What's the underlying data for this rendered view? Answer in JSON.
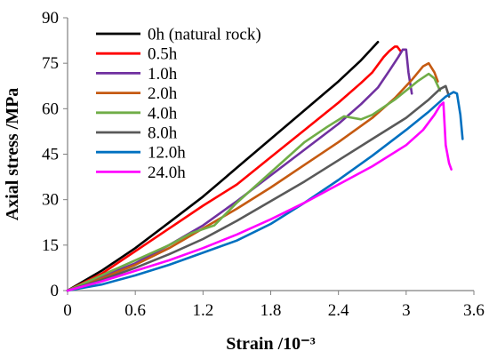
{
  "chart_data": {
    "type": "line",
    "xlabel": "Strain /10⁻³",
    "ylabel": "Axial stress /MPa",
    "xlim": [
      0,
      3.6
    ],
    "ylim": [
      0,
      90
    ],
    "x_ticks": [
      0,
      0.6,
      1.2,
      1.8,
      2.4,
      3.0,
      3.6
    ],
    "x_tick_labels": [
      "0",
      "0.6",
      "1.2",
      "1.8",
      "2.4",
      "3",
      "3.6"
    ],
    "y_ticks": [
      0,
      15,
      30,
      45,
      60,
      75,
      90
    ],
    "y_tick_labels": [
      "0",
      "15",
      "30",
      "45",
      "60",
      "75",
      "90"
    ],
    "grid": false,
    "legend_position": "top-left",
    "series": [
      {
        "name": "0h (natural rock)",
        "color": "#000000",
        "x": [
          0,
          0.3,
          0.6,
          0.9,
          1.2,
          1.5,
          1.8,
          2.1,
          2.4,
          2.6,
          2.75
        ],
        "y": [
          0,
          6.5,
          14,
          22.5,
          31,
          40.5,
          50,
          59.5,
          69,
          76,
          82
        ]
      },
      {
        "name": "0.5h",
        "color": "#ff0000",
        "x": [
          0,
          0.3,
          0.6,
          0.9,
          1.2,
          1.5,
          1.8,
          2.1,
          2.4,
          2.6,
          2.7,
          2.8,
          2.85,
          2.9,
          2.92,
          2.95
        ],
        "y": [
          0,
          5.5,
          13,
          20.5,
          28,
          35,
          44,
          53,
          62,
          68.5,
          72,
          77,
          79,
          80.5,
          80.5,
          79
        ]
      },
      {
        "name": "1.0h",
        "color": "#7030a0",
        "x": [
          0,
          0.3,
          0.6,
          0.9,
          1.2,
          1.5,
          1.8,
          2.1,
          2.4,
          2.6,
          2.75,
          2.85,
          2.93,
          2.97,
          3.0,
          3.02,
          3.05
        ],
        "y": [
          0,
          4.5,
          9,
          15,
          21.5,
          29.5,
          38,
          46.5,
          55,
          61.5,
          67,
          72.5,
          77,
          79.5,
          79.5,
          72,
          65
        ]
      },
      {
        "name": "2.0h",
        "color": "#c55a11",
        "x": [
          0,
          0.3,
          0.6,
          0.9,
          1.2,
          1.5,
          1.8,
          2.1,
          2.4,
          2.7,
          2.9,
          3.05,
          3.15,
          3.2,
          3.25,
          3.28
        ],
        "y": [
          0,
          4,
          8.5,
          14,
          20.5,
          27,
          34,
          41.5,
          49,
          57,
          63.5,
          69.5,
          74,
          75,
          72,
          69
        ]
      },
      {
        "name": "4.0h",
        "color": "#70ad47",
        "x": [
          0,
          0.3,
          0.6,
          0.9,
          1.1,
          1.3,
          1.5,
          1.8,
          2.1,
          2.3,
          2.45,
          2.6,
          2.7,
          2.9,
          3.1,
          3.2,
          3.25,
          3.3
        ],
        "y": [
          0,
          5,
          10,
          15,
          19,
          21.5,
          29,
          39,
          49,
          54,
          57.5,
          56.5,
          58,
          63,
          69,
          71.5,
          70,
          66
        ]
      },
      {
        "name": "8.0h",
        "color": "#595959",
        "x": [
          0,
          0.3,
          0.6,
          0.9,
          1.2,
          1.5,
          1.8,
          2.1,
          2.4,
          2.7,
          3.0,
          3.2,
          3.3,
          3.35,
          3.38
        ],
        "y": [
          0,
          3.5,
          7.5,
          12,
          17,
          23,
          29.5,
          36,
          43,
          50,
          57,
          63,
          66.5,
          67.5,
          64
        ]
      },
      {
        "name": "12.0h",
        "color": "#0070c0",
        "x": [
          0,
          0.3,
          0.6,
          0.9,
          1.2,
          1.5,
          1.8,
          2.1,
          2.4,
          2.7,
          3.0,
          3.2,
          3.35,
          3.42,
          3.45,
          3.48,
          3.5
        ],
        "y": [
          0,
          2,
          5,
          8.5,
          12.5,
          16.5,
          22,
          29,
          36.5,
          44.5,
          53,
          59,
          64,
          65.5,
          65,
          58,
          50
        ]
      },
      {
        "name": "24.0h",
        "color": "#ff00ff",
        "x": [
          0,
          0.3,
          0.6,
          0.9,
          1.2,
          1.5,
          1.8,
          2.1,
          2.4,
          2.7,
          3.0,
          3.15,
          3.25,
          3.3,
          3.33,
          3.35,
          3.38,
          3.4
        ],
        "y": [
          0,
          3,
          6.5,
          10,
          14,
          18.5,
          23.5,
          29,
          35,
          41,
          48,
          53,
          58,
          61,
          62,
          48,
          42,
          40
        ]
      }
    ]
  }
}
